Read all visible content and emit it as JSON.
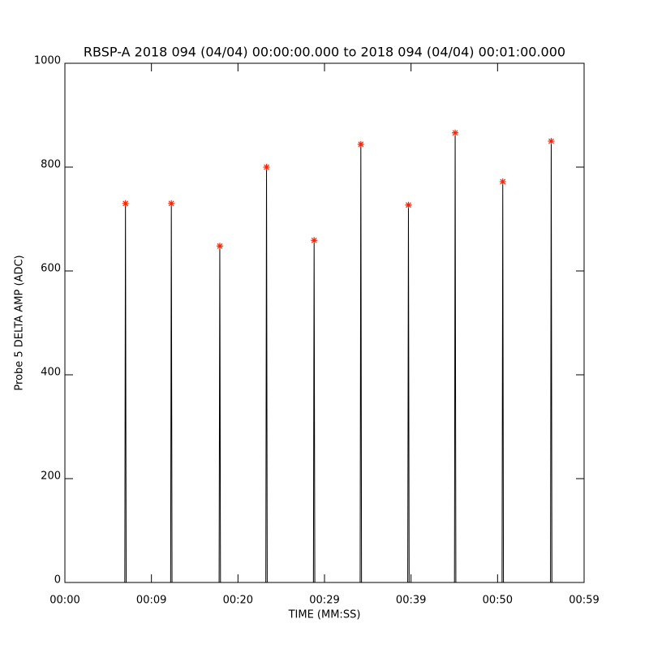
{
  "chart_data": {
    "type": "line",
    "title": "RBSP-A 2018 094 (04/04) 00:00:00.000 to 2018 094 (04/04) 00:01:00.000",
    "xlabel": "TIME (MM:SS)",
    "ylabel": "Probe 5 DELTA AMP (ADC)",
    "xlim": [
      0,
      60
    ],
    "ylim": [
      0,
      1000
    ],
    "xticks": [
      {
        "value": 0,
        "label": "00:00"
      },
      {
        "value": 10,
        "label": "00:09"
      },
      {
        "value": 20,
        "label": "00:20"
      },
      {
        "value": 30,
        "label": "00:29"
      },
      {
        "value": 40,
        "label": "00:39"
      },
      {
        "value": 50,
        "label": "00:50"
      },
      {
        "value": 60,
        "label": "00:59"
      }
    ],
    "yticks": [
      0,
      200,
      400,
      600,
      800,
      1000
    ],
    "series": [
      {
        "color": "#000000",
        "x": [
          0,
          6.92,
          7.0,
          7.08,
          12.22,
          12.3,
          12.38,
          17.82,
          17.9,
          17.98,
          23.22,
          23.3,
          23.38,
          28.72,
          28.8,
          28.88,
          34.12,
          34.2,
          34.28,
          39.62,
          39.7,
          39.78,
          45.02,
          45.1,
          45.18,
          50.52,
          50.6,
          50.68,
          56.12,
          56.2,
          56.28,
          60
        ],
        "values": [
          0,
          0,
          730,
          0,
          0,
          730,
          0,
          0,
          648,
          0,
          0,
          800,
          0,
          0,
          659,
          0,
          0,
          844,
          0,
          0,
          727,
          0,
          0,
          866,
          0,
          0,
          772,
          0,
          0,
          850,
          0,
          0
        ]
      },
      {
        "color": "#ff2000",
        "marker": "star",
        "x": [
          7.0,
          12.3,
          17.9,
          23.3,
          28.8,
          34.2,
          39.7,
          45.1,
          50.6,
          56.2
        ],
        "values": [
          730,
          730,
          648,
          800,
          659,
          844,
          727,
          866,
          772,
          850
        ]
      }
    ]
  }
}
